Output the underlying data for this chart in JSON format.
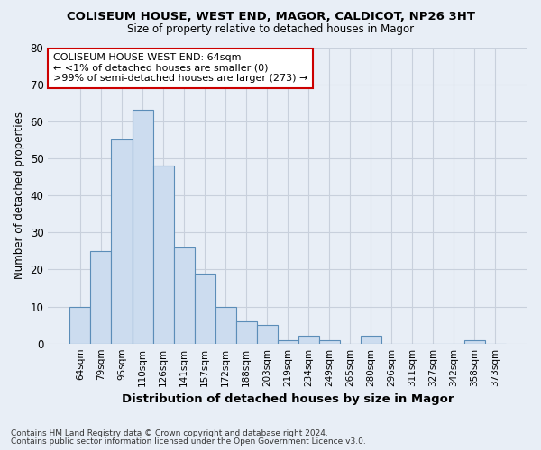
{
  "title1": "COLISEUM HOUSE, WEST END, MAGOR, CALDICOT, NP26 3HT",
  "title2": "Size of property relative to detached houses in Magor",
  "xlabel": "Distribution of detached houses by size in Magor",
  "ylabel": "Number of detached properties",
  "categories": [
    "64sqm",
    "79sqm",
    "95sqm",
    "110sqm",
    "126sqm",
    "141sqm",
    "157sqm",
    "172sqm",
    "188sqm",
    "203sqm",
    "219sqm",
    "234sqm",
    "249sqm",
    "265sqm",
    "280sqm",
    "296sqm",
    "311sqm",
    "327sqm",
    "342sqm",
    "358sqm",
    "373sqm"
  ],
  "values": [
    10,
    25,
    55,
    63,
    48,
    26,
    19,
    10,
    6,
    5,
    1,
    2,
    1,
    0,
    2,
    0,
    0,
    0,
    0,
    1,
    0
  ],
  "bar_color": "#ccdcef",
  "bar_edge_color": "#5b8db8",
  "annotation_title": "COLISEUM HOUSE WEST END: 64sqm",
  "annotation_line1": "← <1% of detached houses are smaller (0)",
  "annotation_line2": ">99% of semi-detached houses are larger (273) →",
  "annotation_box_color": "#ffffff",
  "annotation_box_edge": "#cc0000",
  "ylim": [
    0,
    80
  ],
  "yticks": [
    0,
    10,
    20,
    30,
    40,
    50,
    60,
    70,
    80
  ],
  "background_color": "#e8eef6",
  "plot_bg_color": "#ffffff",
  "grid_color": "#c8d0dc",
  "footer1": "Contains HM Land Registry data © Crown copyright and database right 2024.",
  "footer2": "Contains public sector information licensed under the Open Government Licence v3.0."
}
